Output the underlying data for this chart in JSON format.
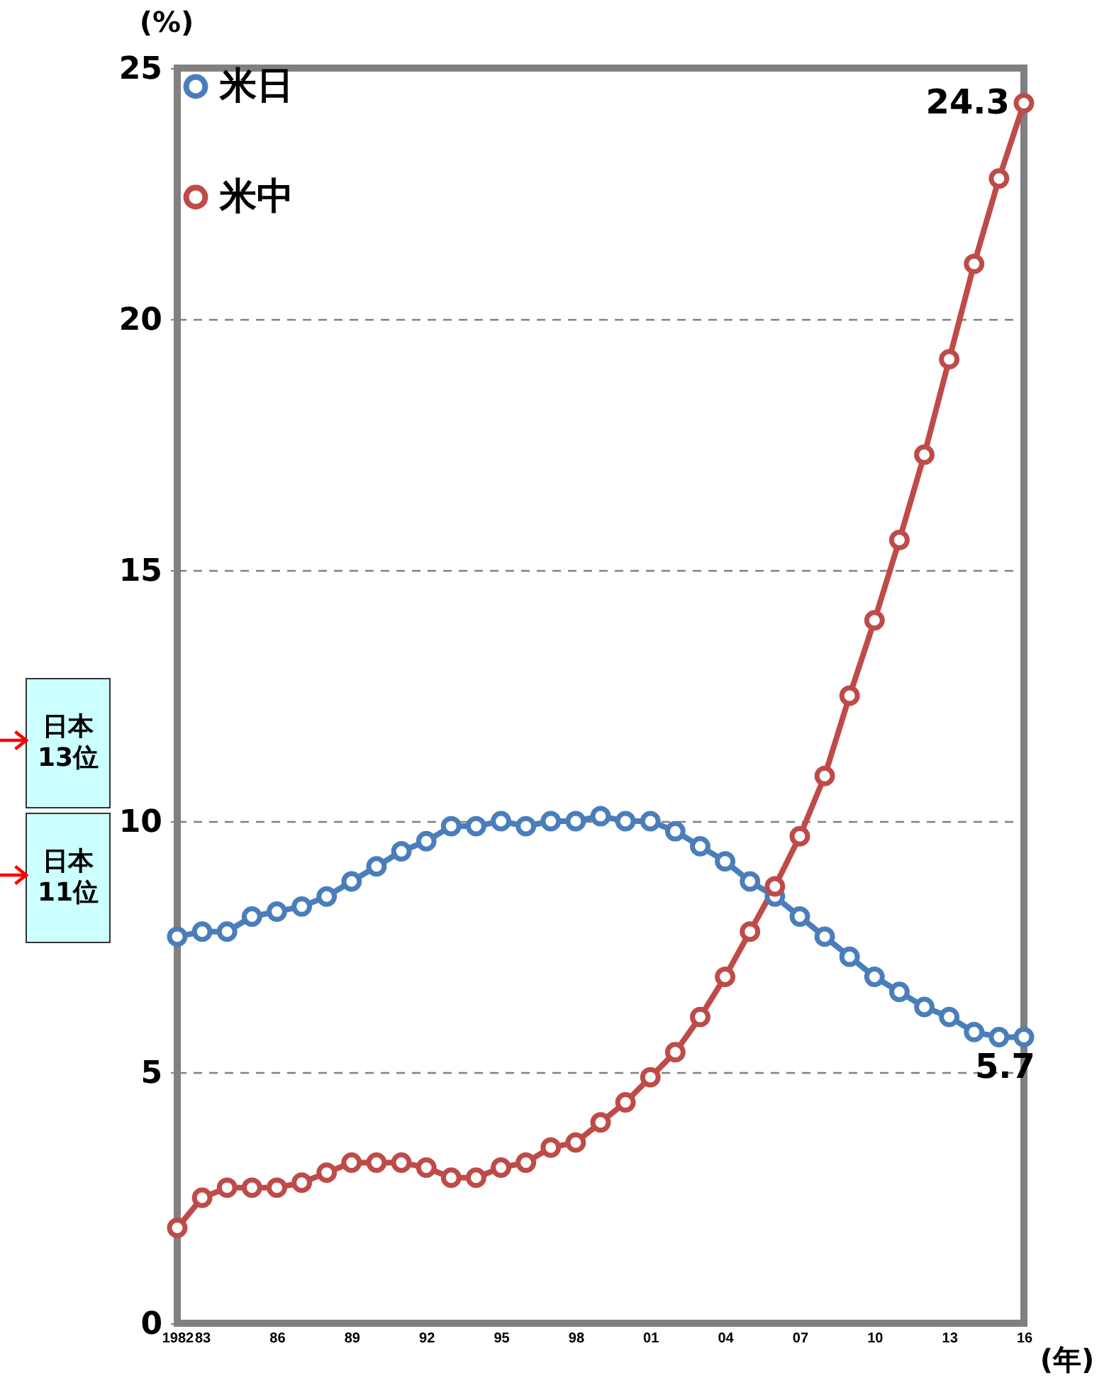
{
  "chart_data": {
    "type": "line",
    "x": [
      1982,
      1983,
      1984,
      1985,
      1986,
      1987,
      1988,
      1989,
      1990,
      1991,
      1992,
      1993,
      1994,
      1995,
      1996,
      1997,
      1998,
      1999,
      2000,
      2001,
      2002,
      2003,
      2004,
      2005,
      2006,
      2007,
      2008,
      2009,
      2010,
      2011,
      2012,
      2013,
      2014,
      2015,
      2016
    ],
    "series": [
      {
        "name": "米日",
        "color": "#4a7ebb",
        "values": [
          7.7,
          7.8,
          7.8,
          8.1,
          8.2,
          8.3,
          8.5,
          8.8,
          9.1,
          9.4,
          9.6,
          9.9,
          9.9,
          10.0,
          9.9,
          10.0,
          10.0,
          10.1,
          10.0,
          10.0,
          9.8,
          9.5,
          9.2,
          8.8,
          8.5,
          8.1,
          7.7,
          7.3,
          6.9,
          6.6,
          6.3,
          6.1,
          5.8,
          5.7,
          5.7
        ],
        "value_labels": [
          null,
          null,
          null,
          null,
          null,
          null,
          null,
          null,
          null,
          null,
          null,
          null,
          null,
          null,
          null,
          null,
          null,
          null,
          null,
          null,
          null,
          null,
          null,
          null,
          null,
          null,
          null,
          null,
          null,
          null,
          null,
          null,
          null,
          null,
          "5.7"
        ]
      },
      {
        "name": "米中",
        "color": "#be4b48",
        "values": [
          1.9,
          2.5,
          2.7,
          2.7,
          2.7,
          2.8,
          3.0,
          3.2,
          3.2,
          3.2,
          3.1,
          2.9,
          2.9,
          3.1,
          3.2,
          3.5,
          3.6,
          4.0,
          4.4,
          4.9,
          5.4,
          6.1,
          6.9,
          7.8,
          8.7,
          9.7,
          10.9,
          12.5,
          14.0,
          15.6,
          17.3,
          19.2,
          21.1,
          22.8,
          24.3
        ],
        "value_labels": [
          null,
          null,
          null,
          null,
          null,
          null,
          null,
          null,
          null,
          null,
          null,
          null,
          null,
          null,
          null,
          null,
          null,
          null,
          null,
          null,
          null,
          null,
          null,
          null,
          null,
          null,
          null,
          null,
          null,
          null,
          null,
          null,
          null,
          null,
          "24.3"
        ]
      }
    ],
    "xlabel": "(年)",
    "ylabel": "(%)",
    "xlim": [
      1982,
      2016
    ],
    "xticks": [
      {
        "value": 1982,
        "label": "1982"
      },
      {
        "value": 1983,
        "label": "83"
      },
      {
        "value": 1986,
        "label": "86"
      },
      {
        "value": 1989,
        "label": "89"
      },
      {
        "value": 1992,
        "label": "92"
      },
      {
        "value": 1995,
        "label": "95"
      },
      {
        "value": 1998,
        "label": "98"
      },
      {
        "value": 2001,
        "label": "01"
      },
      {
        "value": 2004,
        "label": "04"
      },
      {
        "value": 2007,
        "label": "07"
      },
      {
        "value": 2010,
        "label": "10"
      },
      {
        "value": 2013,
        "label": "13"
      },
      {
        "value": 2016,
        "label": "16"
      }
    ],
    "ylim": [
      0,
      25
    ],
    "yticks": [
      0,
      5,
      10,
      15,
      20,
      25
    ],
    "grid": "y",
    "legend": "top left",
    "marker": "circle",
    "annotations": [
      "日本\n13位",
      "日本\n11位"
    ]
  }
}
